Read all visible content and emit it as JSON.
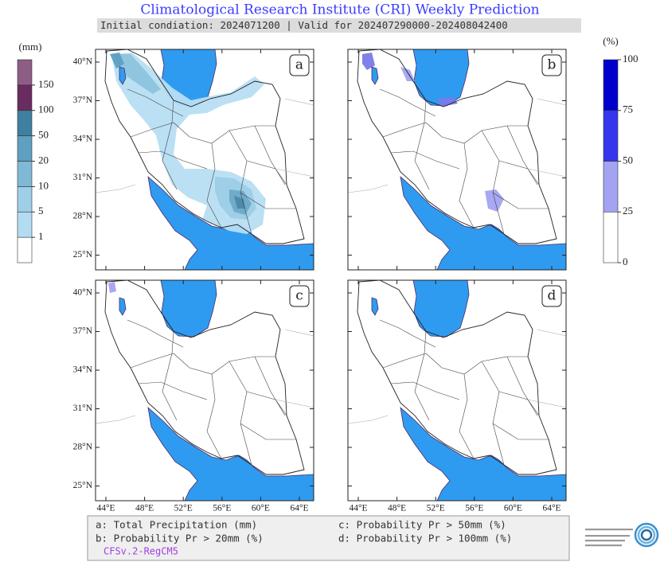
{
  "header": {
    "title": "Climatological Research Institute (CRI) Weekly Prediction",
    "subtitle": "Initial condiation: 2024071200 | Valid for 202407290000-202408042400"
  },
  "precip_colorbar": {
    "unit": "(mm)",
    "labels": [
      "1",
      "5",
      "10",
      "20",
      "50",
      "100",
      "150"
    ]
  },
  "prob_colorbar": {
    "unit": "(%)",
    "labels": [
      "0",
      "25",
      "50",
      "75",
      "100"
    ]
  },
  "panels": [
    {
      "label": "a"
    },
    {
      "label": "b"
    },
    {
      "label": "c"
    },
    {
      "label": "d"
    }
  ],
  "lat_labels": [
    "40°N",
    "37°N",
    "34°N",
    "31°N",
    "28°N",
    "25°N"
  ],
  "lon_labels": [
    "44°E",
    "48°E",
    "52°E",
    "56°E",
    "60°E",
    "64°E"
  ],
  "legend": {
    "items": [
      "a: Total Precipitation (mm)",
      "b: Probability Pr > 20mm (%)",
      "c: Probability Pr > 50mm (%)",
      "d: Probability Pr > 100mm (%)"
    ],
    "model": "CFSv.2-RegCM5"
  }
}
